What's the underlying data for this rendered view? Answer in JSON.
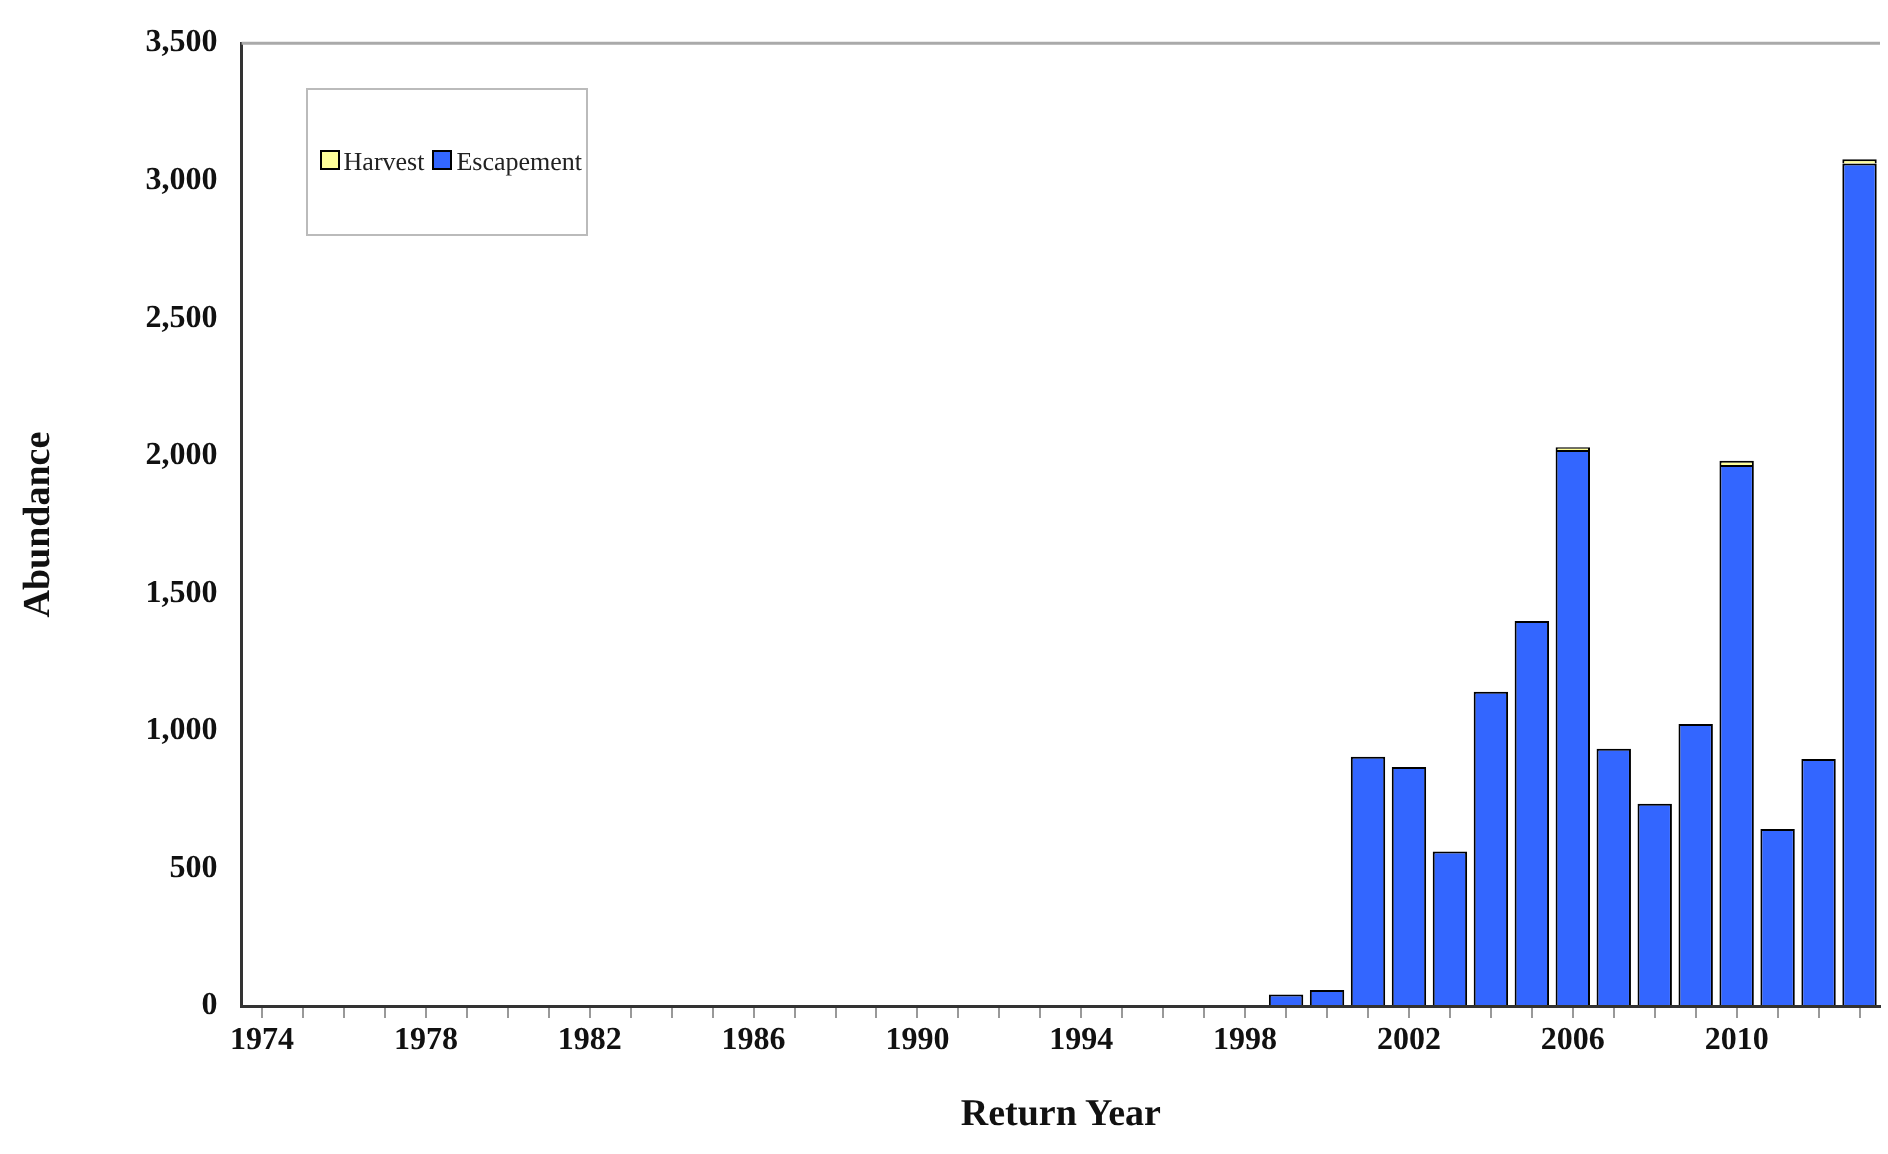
{
  "chart_data": {
    "type": "bar",
    "stacked": true,
    "xlabel": "Return Year",
    "ylabel": "Abundance",
    "categories": [
      "1974",
      null,
      null,
      null,
      "1978",
      null,
      null,
      null,
      "1982",
      null,
      null,
      null,
      "1986",
      null,
      null,
      null,
      "1990",
      null,
      null,
      null,
      "1994",
      null,
      null,
      null,
      "1998",
      null,
      null,
      null,
      "2002",
      null,
      null,
      null,
      "2006",
      null,
      null,
      null,
      "2010",
      null,
      null,
      null
    ],
    "series": [
      {
        "name": "Escapement",
        "color": "#3366ff",
        "values": [
          0,
          0,
          0,
          0,
          0,
          0,
          0,
          0,
          0,
          0,
          0,
          0,
          0,
          0,
          0,
          0,
          0,
          0,
          0,
          0,
          0,
          0,
          0,
          0,
          0,
          42,
          58,
          906,
          869,
          562,
          1142,
          1400,
          2021,
          935,
          735,
          1025,
          1967,
          643,
          898,
          3063
        ]
      },
      {
        "name": "Harvest",
        "color": "#ffff99",
        "values": [
          0,
          0,
          0,
          0,
          0,
          0,
          0,
          0,
          0,
          0,
          0,
          0,
          0,
          0,
          0,
          0,
          0,
          0,
          0,
          0,
          0,
          0,
          0,
          0,
          0,
          0,
          0,
          0,
          0,
          0,
          0,
          0,
          10,
          0,
          0,
          0,
          15,
          0,
          0,
          15
        ]
      }
    ],
    "ylim": [
      0,
      3500
    ],
    "yticks": [
      {
        "value": 0,
        "label": "0"
      },
      {
        "value": 500,
        "label": "500"
      },
      {
        "value": 1000,
        "label": "1,000"
      },
      {
        "value": 1500,
        "label": "1,500"
      },
      {
        "value": 2000,
        "label": "2,000"
      },
      {
        "value": 2500,
        "label": "2,500"
      },
      {
        "value": 3000,
        "label": "3,000"
      },
      {
        "value": 3500,
        "label": "3,500"
      }
    ],
    "grid": false,
    "legend": "top left"
  }
}
